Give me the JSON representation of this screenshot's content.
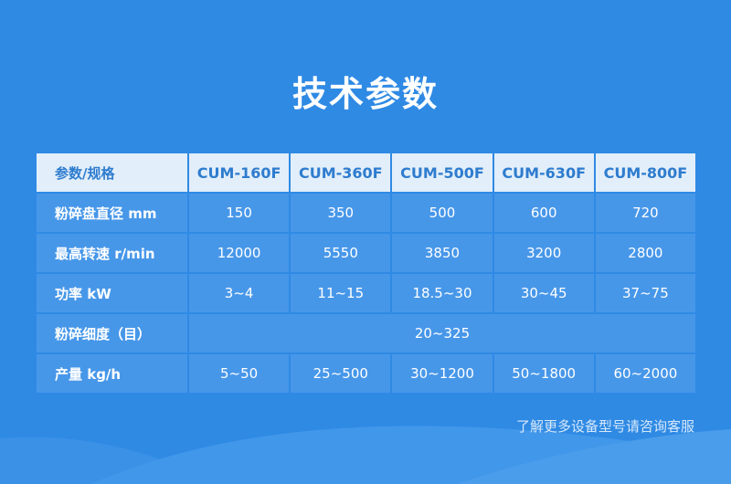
{
  "title": "技术参数",
  "table": {
    "header": [
      "参数/规格",
      "CUM-160F",
      "CUM-360F",
      "CUM-500F",
      "CUM-630F",
      "CUM-800F"
    ],
    "rows": [
      {
        "label": "粉碎盘直径 mm",
        "values": [
          "150",
          "350",
          "500",
          "600",
          "720"
        ]
      },
      {
        "label": "最高转速 r/min",
        "values": [
          "12000",
          "5550",
          "3850",
          "3200",
          "2800"
        ]
      },
      {
        "label": "功率 kW",
        "values": [
          "3~4",
          "11~15",
          "18.5~30",
          "30~45",
          "37~75"
        ]
      },
      {
        "label": "粉碎细度（目）",
        "values": [
          "20~325"
        ]
      },
      {
        "label": "产量 kg/h",
        "values": [
          "5~50",
          "25~500",
          "30~1200",
          "50~1800",
          "60~2000"
        ]
      }
    ]
  },
  "footer": "了解更多设备型号请咨询客服",
  "colors": {
    "background": "#2f8ae4",
    "header_bg": "#e2eef9",
    "header_text": "#2e7ccf",
    "row_bg": "#4797e9"
  }
}
